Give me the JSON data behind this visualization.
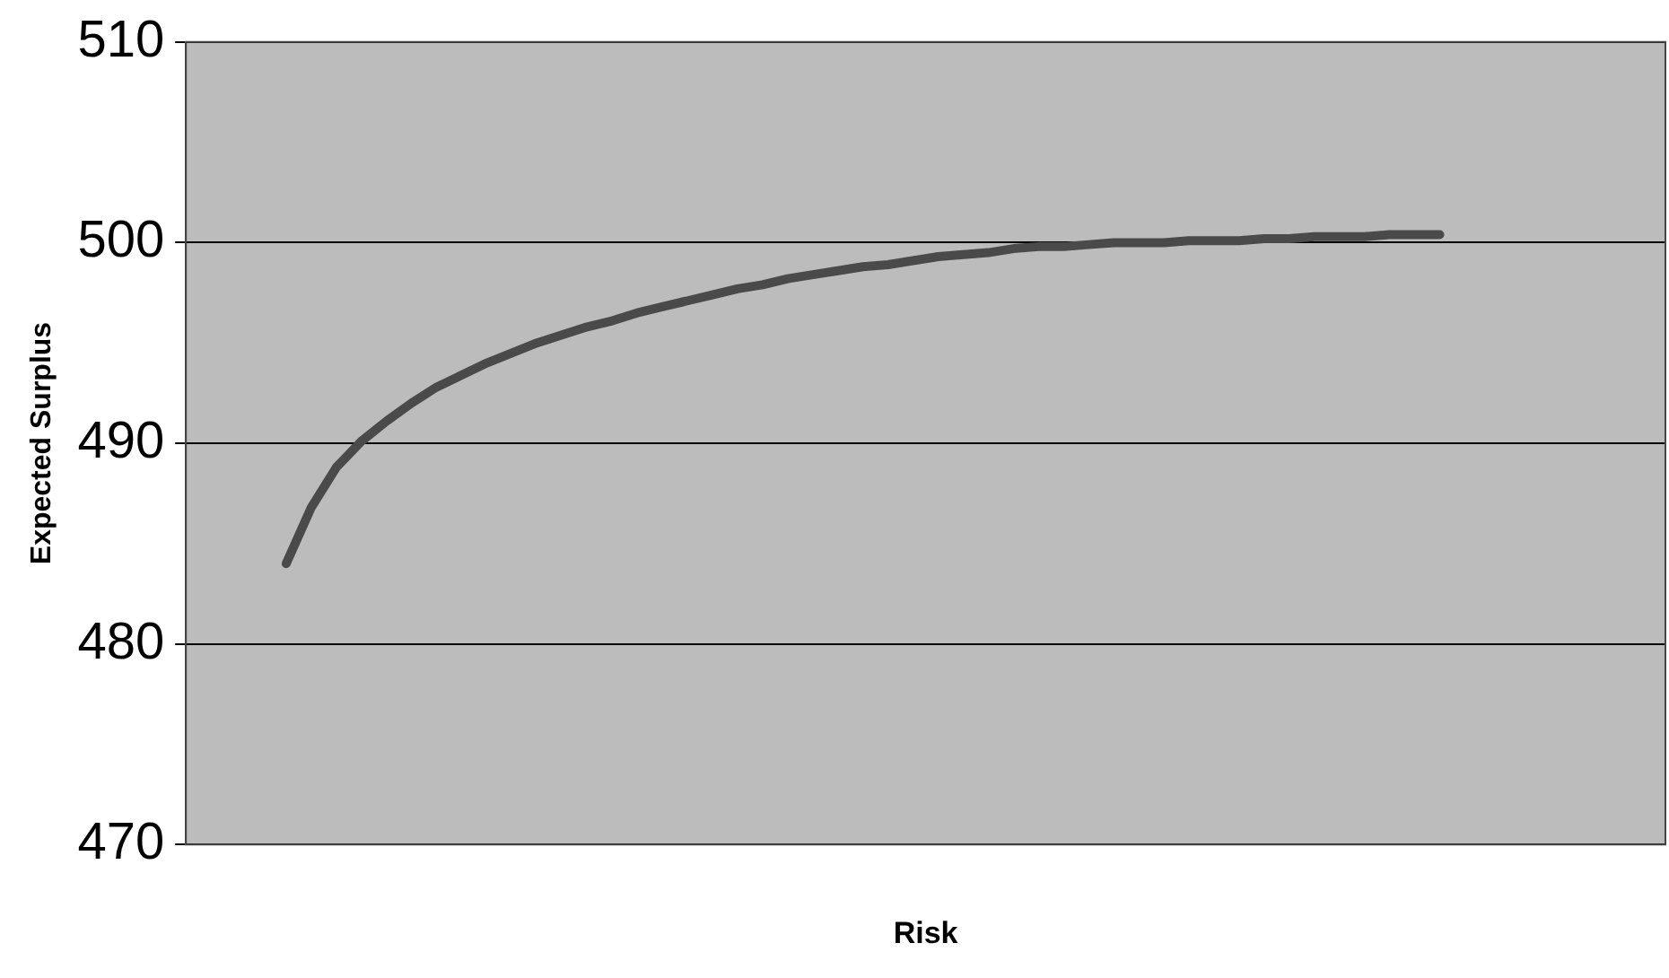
{
  "chart_data": {
    "type": "line",
    "xlabel": "Risk",
    "ylabel": "Expected Surplus",
    "categories": [
      null,
      null,
      null,
      null,
      null,
      null,
      null,
      null,
      null,
      null,
      null,
      null,
      null,
      null,
      null,
      null,
      null,
      null,
      null,
      null,
      null,
      null,
      null,
      null,
      null,
      null,
      null,
      null,
      null,
      null,
      null,
      null,
      null,
      null,
      null,
      null,
      null,
      null,
      null,
      null,
      null,
      null,
      null,
      null,
      null,
      null,
      null,
      null,
      null,
      null,
      null,
      null,
      null,
      null,
      null,
      null,
      null,
      null,
      null,
      null
    ],
    "values": [
      null,
      null,
      null,
      null,
      484.0,
      486.8,
      488.8,
      490.1,
      491.1,
      492.0,
      492.8,
      493.4,
      494.0,
      494.5,
      495.0,
      495.4,
      495.8,
      496.1,
      496.5,
      496.8,
      497.1,
      497.4,
      497.7,
      497.9,
      498.2,
      498.4,
      498.6,
      498.8,
      498.9,
      499.1,
      499.3,
      499.4,
      499.5,
      499.7,
      499.8,
      499.8,
      499.9,
      500.0,
      500.0,
      500.0,
      500.1,
      500.1,
      500.1,
      500.2,
      500.2,
      500.3,
      500.3,
      500.3,
      500.4,
      500.4,
      500.4,
      null,
      null,
      null,
      null,
      null,
      null,
      null,
      null,
      null
    ],
    "color": "#4a4a4a",
    "ylim": [
      470,
      510
    ],
    "yticks": [
      470,
      480,
      490,
      500,
      510
    ],
    "grid": "y",
    "marker": "none",
    "line_style": "solid",
    "tick_labels": "y"
  }
}
